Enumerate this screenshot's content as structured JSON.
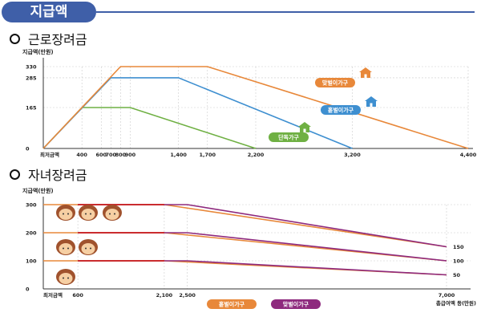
{
  "header": {
    "title": "지급액"
  },
  "sections": [
    {
      "title": "근로장려금"
    },
    {
      "title": "자녀장려금"
    }
  ],
  "colors": {
    "orange": "#e8883a",
    "blue": "#3e8fd0",
    "green": "#6fb043",
    "purple": "#8e2a7e",
    "red": "#cc2222",
    "grid": "#cccccc"
  },
  "chart_data": [
    {
      "type": "line",
      "title": "근로장려금",
      "ylabel": "지급액(만원)",
      "x_min_label": "최저금액",
      "x_ticks": [
        400,
        600,
        700,
        800,
        900,
        1400,
        1700,
        2200,
        3200,
        4400
      ],
      "x_tick_labels": [
        "400",
        "600",
        "700",
        "800",
        "900",
        "1,400",
        "1,700",
        "2,200",
        "3,200",
        "4,400"
      ],
      "y_ticks": [
        0,
        165,
        285,
        330
      ],
      "y_tick_labels": [
        "0",
        "165",
        "285",
        "330"
      ],
      "ylim": [
        0,
        330
      ],
      "xlim": [
        0,
        4400
      ],
      "series": [
        {
          "name": "단독가구",
          "color": "#6fb043",
          "x": [
            0,
            400,
            900,
            2200
          ],
          "y": [
            0,
            165,
            165,
            0
          ]
        },
        {
          "name": "홑벌이가구",
          "color": "#3e8fd0",
          "x": [
            0,
            700,
            1400,
            3200
          ],
          "y": [
            0,
            285,
            285,
            0
          ]
        },
        {
          "name": "맞벌이가구",
          "color": "#e8883a",
          "x": [
            0,
            800,
            1700,
            4400
          ],
          "y": [
            0,
            330,
            330,
            0
          ]
        }
      ]
    },
    {
      "type": "line",
      "title": "자녀장려금",
      "ylabel": "지급액(만원)",
      "xlabel": "총급여액 등(만원)",
      "x_min_label": "최저금액",
      "x_ticks": [
        600,
        2100,
        2500,
        7000
      ],
      "x_tick_labels": [
        "600",
        "2,100",
        "2,500",
        "7,000"
      ],
      "y_ticks": [
        0,
        100,
        200,
        300
      ],
      "y_tick_labels": [
        "0",
        "100",
        "200",
        "300"
      ],
      "ylim": [
        0,
        300
      ],
      "xlim": [
        0,
        7000
      ],
      "end_labels": [
        "150",
        "100",
        "50"
      ],
      "legend": [
        "홑벌이가구",
        "맞벌이가구"
      ],
      "series": [
        {
          "name": "홑벌이가구 (3자녀)",
          "color": "#e8883a",
          "x": [
            0,
            2100,
            7000
          ],
          "y": [
            300,
            300,
            150
          ]
        },
        {
          "name": "맞벌이가구 (3자녀)",
          "color": "#8e2a7e",
          "x": [
            600,
            2500,
            7000
          ],
          "y": [
            300,
            300,
            150
          ]
        },
        {
          "name": "홑벌이가구 (2자녀)",
          "color": "#e8883a",
          "x": [
            0,
            2100,
            7000
          ],
          "y": [
            200,
            200,
            100
          ]
        },
        {
          "name": "맞벌이가구 (2자녀)",
          "color": "#8e2a7e",
          "x": [
            600,
            2500,
            7000
          ],
          "y": [
            200,
            200,
            100
          ]
        },
        {
          "name": "홑벌이가구 (1자녀)",
          "color": "#e8883a",
          "x": [
            0,
            2100,
            7000
          ],
          "y": [
            100,
            100,
            50
          ]
        },
        {
          "name": "맞벌이가구 (1자녀)",
          "color": "#8e2a7e",
          "x": [
            600,
            2500,
            7000
          ],
          "y": [
            100,
            100,
            50
          ]
        }
      ]
    }
  ]
}
